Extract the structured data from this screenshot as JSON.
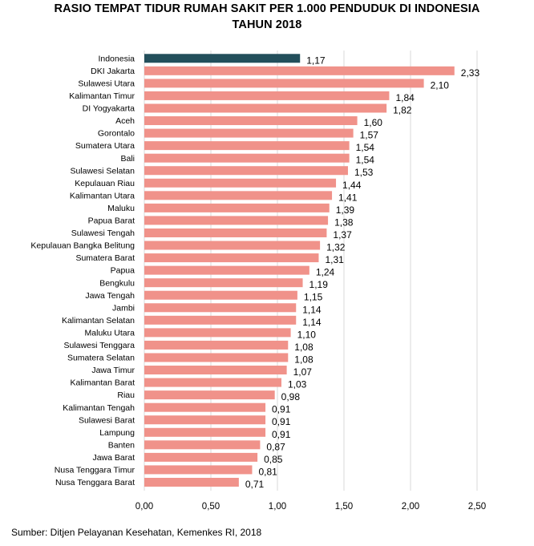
{
  "title_line1": "RASIO TEMPAT TIDUR RUMAH SAKIT PER 1.000 PENDUDUK DI INDONESIA",
  "title_line2": "TAHUN 2018",
  "source": "Sumber: Ditjen Pelayanan Kesehatan, Kemenkes RI, 2018",
  "colors": {
    "highlight": "#234f5b",
    "bar": "#f0928a",
    "grid": "#d9d9d9"
  },
  "chart_data": {
    "type": "bar",
    "orientation": "horizontal",
    "categories": [
      "Indonesia",
      "DKI Jakarta",
      "Sulawesi Utara",
      "Kalimantan Timur",
      "DI Yogyakarta",
      "Aceh",
      "Gorontalo",
      "Sumatera Utara",
      "Bali",
      "Sulawesi Selatan",
      "Kepulauan Riau",
      "Kalimantan Utara",
      "Maluku",
      "Papua Barat",
      "Sulawesi Tengah",
      "Kepulauan Bangka Belitung",
      "Sumatera Barat",
      "Papua",
      "Bengkulu",
      "Jawa Tengah",
      "Jambi",
      "Kalimantan Selatan",
      "Maluku Utara",
      "Sulawesi Tenggara",
      "Sumatera Selatan",
      "Jawa Timur",
      "Kalimantan Barat",
      "Riau",
      "Kalimantan Tengah",
      "Sulawesi Barat",
      "Lampung",
      "Banten",
      "Jawa Barat",
      "Nusa Tenggara Timur",
      "Nusa Tenggara Barat"
    ],
    "values": [
      1.17,
      2.33,
      2.1,
      1.84,
      1.82,
      1.6,
      1.57,
      1.54,
      1.54,
      1.53,
      1.44,
      1.41,
      1.39,
      1.38,
      1.37,
      1.32,
      1.31,
      1.24,
      1.19,
      1.15,
      1.14,
      1.14,
      1.1,
      1.08,
      1.08,
      1.07,
      1.03,
      0.98,
      0.91,
      0.91,
      0.91,
      0.87,
      0.85,
      0.81,
      0.71
    ],
    "value_labels": [
      "1,17",
      "2,33",
      "2,10",
      "1,84",
      "1,82",
      "1,60",
      "1,57",
      "1,54",
      "1,54",
      "1,53",
      "1,44",
      "1,41",
      "1,39",
      "1,38",
      "1,37",
      "1,32",
      "1,31",
      "1,24",
      "1,19",
      "1,15",
      "1,14",
      "1,14",
      "1,10",
      "1,08",
      "1,08",
      "1,07",
      "1,03",
      "0,98",
      "0,91",
      "0,91",
      "0,91",
      "0,87",
      "0,85",
      "0,81",
      "0,71"
    ],
    "highlight_category": "Indonesia",
    "xlim": [
      0,
      2.5
    ],
    "x_ticks": [
      0,
      0.5,
      1.0,
      1.5,
      2.0,
      2.5
    ],
    "x_tick_labels": [
      "0,00",
      "0,50",
      "1,00",
      "1,50",
      "2,00",
      "2,50"
    ],
    "grid": true,
    "legend": "none"
  }
}
